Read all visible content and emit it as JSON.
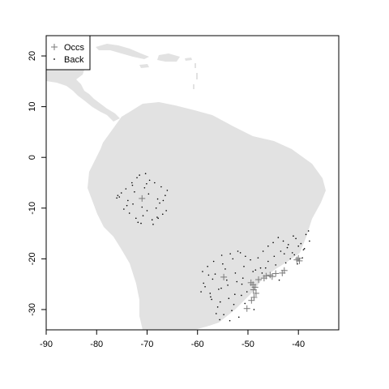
{
  "chart_data": {
    "type": "scatter",
    "title": "",
    "xlabel": "",
    "ylabel": "",
    "xlim": [
      -90,
      -32
    ],
    "ylim": [
      -34,
      24
    ],
    "xticks": [
      -90,
      -80,
      -70,
      -60,
      -50,
      -40
    ],
    "yticks": [
      20,
      10,
      0,
      -10,
      -20,
      -30
    ],
    "grid": false,
    "legend_position": "top-left",
    "colors": {
      "land": "#e2e2e2",
      "occ": "#7a7a7a",
      "back": "#000000",
      "axis": "#000000"
    },
    "legend": [
      {
        "symbol": "+",
        "label": "Occs"
      },
      {
        "symbol": "·",
        "label": "Back"
      }
    ],
    "series": [
      {
        "name": "Occs",
        "marker": "plus",
        "x": [
          -71,
          -54.8,
          -50.2,
          -49.3,
          -48.8,
          -48.4,
          -48.6,
          -49.0,
          -49.4,
          -47.9,
          -46.8,
          -46.4,
          -45.6,
          -45.2,
          -44.5,
          -43.2,
          -42.8,
          -40.3,
          -40.0,
          -39.8,
          -48.9
        ],
        "y": [
          -8.1,
          -23.6,
          -29.8,
          -28.2,
          -27.6,
          -26.8,
          -25.6,
          -25.1,
          -24.7,
          -24.1,
          -23.8,
          -23.4,
          -23.2,
          -23.5,
          -22.9,
          -22.8,
          -22.3,
          -20.2,
          -19.9,
          -20.4,
          -26.1
        ]
      },
      {
        "name": "Back",
        "marker": "dot",
        "x": [
          -71.5,
          -72.0,
          -70.3,
          -69.5,
          -73.0,
          -74.2,
          -75.1,
          -75.8,
          -76.0,
          -72.8,
          -71.0,
          -70.0,
          -68.2,
          -67.5,
          -66.8,
          -66.4,
          -66.0,
          -67.2,
          -68.5,
          -70.8,
          -72.2,
          -73.5,
          -74.6,
          -71.8,
          -69.0,
          -68.0,
          -66.9,
          -73.8,
          -72.5,
          -70.5,
          -69.7,
          -67.8,
          -74.0,
          -71.2,
          -68.8,
          -66.2,
          -75.5,
          -72.9,
          -70.1,
          -67.9,
          -52.0,
          -53.5,
          -55.2,
          -56.8,
          -58.0,
          -59.0,
          -56.5,
          -55.0,
          -53.0,
          -51.5,
          -50.5,
          -49.5,
          -48.0,
          -47.0,
          -46.0,
          -45.0,
          -44.0,
          -43.0,
          -42.0,
          -41.0,
          -40.5,
          -39.5,
          -38.5,
          -38.0,
          -37.8,
          -39.0,
          -40.8,
          -42.5,
          -44.5,
          -46.5,
          -48.5,
          -50.8,
          -52.5,
          -54.5,
          -57.0,
          -58.5,
          -57.5,
          -55.8,
          -54.0,
          -52.2,
          -51.0,
          -49.0,
          -47.5,
          -46.0,
          -44.8,
          -43.5,
          -42.2,
          -41.2,
          -40.0,
          -38.8,
          -53.8,
          -55.5,
          -57.2,
          -56.0,
          -52.8,
          -51.3,
          -50.2,
          -53.2,
          -54.8,
          -56.3,
          -57.8,
          -58.8,
          -59.3,
          -55.3,
          -52.6,
          -50.6,
          -48.8,
          -47.2,
          -45.6,
          -43.8,
          -42.8,
          -41.6,
          -40.2,
          -39.2,
          -51.8,
          -53.6,
          -55.6,
          -57.4,
          -54.2,
          -51.2
        ],
        "y": [
          -3.5,
          -4.0,
          -3.2,
          -4.5,
          -5.0,
          -6.2,
          -7.0,
          -7.5,
          -8.0,
          -9.2,
          -9.8,
          -10.5,
          -10.0,
          -9.0,
          -8.5,
          -7.5,
          -6.5,
          -5.8,
          -5.0,
          -11.5,
          -12.0,
          -11.0,
          -10.2,
          -12.8,
          -12.3,
          -11.8,
          -11.2,
          -8.5,
          -6.8,
          -6.0,
          -7.2,
          -12.0,
          -9.5,
          -13.0,
          -13.2,
          -10.5,
          -7.8,
          -5.5,
          -5.2,
          -8.2,
          -18.5,
          -19.0,
          -19.3,
          -20.5,
          -21.5,
          -22.5,
          -23.0,
          -21.0,
          -20.0,
          -18.8,
          -19.5,
          -20.2,
          -19.8,
          -18.5,
          -17.5,
          -16.8,
          -15.8,
          -16.5,
          -17.2,
          -15.5,
          -16.0,
          -17.0,
          -15.2,
          -14.5,
          -16.5,
          -18.2,
          -19.2,
          -20.8,
          -21.2,
          -21.8,
          -22.2,
          -21.5,
          -22.8,
          -22.0,
          -24.0,
          -25.5,
          -26.8,
          -26.0,
          -25.2,
          -24.5,
          -23.8,
          -22.5,
          -21.8,
          -20.5,
          -19.5,
          -18.5,
          -17.8,
          -18.8,
          -17.5,
          -18.0,
          -27.8,
          -28.5,
          -28.0,
          -29.5,
          -29.0,
          -27.2,
          -26.5,
          -30.2,
          -31.0,
          -30.8,
          -23.2,
          -24.8,
          -26.5,
          -25.8,
          -27.0,
          -28.8,
          -30.0,
          -22.8,
          -23.5,
          -24.2,
          -19.0,
          -20.0,
          -21.0,
          -19.8,
          -31.5,
          -32.2,
          -32.0,
          -27.5,
          -24.2,
          -25.0
        ]
      }
    ],
    "axis_labels": {
      "x": [
        "-90",
        "-80",
        "-70",
        "-60",
        "-50",
        "-40"
      ],
      "y": [
        "20",
        "10",
        "0",
        "-10",
        "-20",
        "-30"
      ]
    }
  }
}
